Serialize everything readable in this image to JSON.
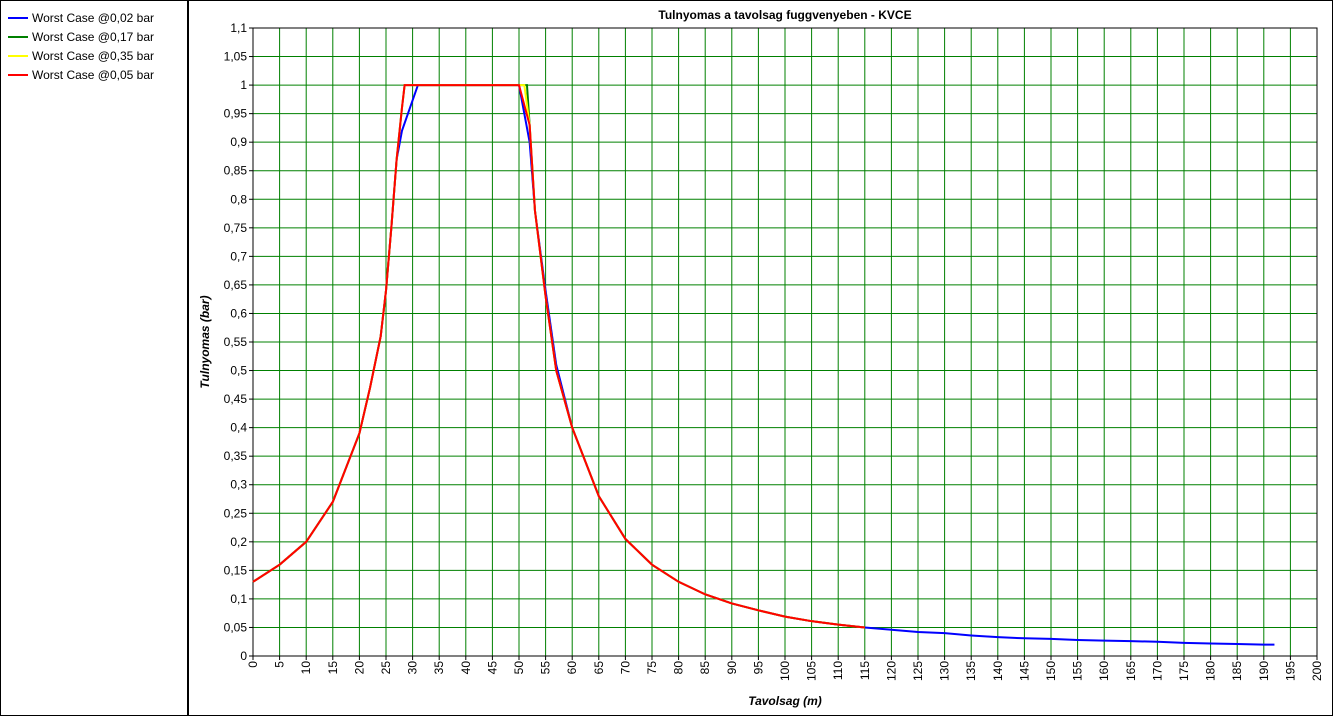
{
  "chart_data": {
    "type": "line",
    "title": "Tulnyomas a tavolsag fuggvenyeben - KVCE",
    "x_label": "Tavolsag (m)",
    "y_label": "Tulnyomas (bar)",
    "legend": "left-panel",
    "grid": true,
    "grid_color": "#008000",
    "xlim": [
      0,
      200
    ],
    "xticks": [
      0,
      5,
      10,
      15,
      20,
      25,
      30,
      35,
      40,
      45,
      50,
      55,
      60,
      65,
      70,
      75,
      80,
      85,
      90,
      95,
      100,
      105,
      110,
      115,
      120,
      125,
      130,
      135,
      140,
      145,
      150,
      155,
      160,
      165,
      170,
      175,
      180,
      185,
      190,
      195,
      200
    ],
    "ylim": [
      0,
      1.1
    ],
    "yticks": [
      0,
      {
        "value": 0.05,
        "label": "0,05"
      },
      {
        "value": 0.1,
        "label": "0,1"
      },
      {
        "value": 0.15,
        "label": "0,15"
      },
      {
        "value": 0.2,
        "label": "0,2"
      },
      {
        "value": 0.25,
        "label": "0,25"
      },
      {
        "value": 0.3,
        "label": "0,3"
      },
      {
        "value": 0.35,
        "label": "0,35"
      },
      {
        "value": 0.4,
        "label": "0,4"
      },
      {
        "value": 0.45,
        "label": "0,45"
      },
      {
        "value": 0.5,
        "label": "0,5"
      },
      {
        "value": 0.55,
        "label": "0,55"
      },
      {
        "value": 0.6,
        "label": "0,6"
      },
      {
        "value": 0.65,
        "label": "0,65"
      },
      {
        "value": 0.7,
        "label": "0,7"
      },
      {
        "value": 0.75,
        "label": "0,75"
      },
      {
        "value": 0.8,
        "label": "0,8"
      },
      {
        "value": 0.85,
        "label": "0,85"
      },
      {
        "value": 0.9,
        "label": "0,9"
      },
      {
        "value": 0.95,
        "label": "0,95"
      },
      1,
      {
        "value": 1.05,
        "label": "1,05"
      },
      {
        "value": 1.1,
        "label": "1,1"
      }
    ],
    "series": [
      {
        "name": "Worst Case @0,02 bar",
        "color": "#0000ff",
        "x": [
          0,
          5,
          10,
          15,
          20,
          22,
          24,
          25,
          26,
          27,
          28,
          31,
          50,
          52,
          53,
          55,
          57,
          60,
          65,
          70,
          75,
          80,
          85,
          90,
          95,
          100,
          105,
          110,
          115,
          120,
          125,
          130,
          135,
          140,
          145,
          150,
          155,
          160,
          165,
          170,
          175,
          180,
          185,
          190,
          192
        ],
        "values": [
          0.13,
          0.16,
          0.2,
          0.27,
          0.39,
          0.47,
          0.56,
          0.64,
          0.75,
          0.87,
          0.92,
          1,
          1,
          0.9,
          0.78,
          0.64,
          0.51,
          0.4,
          0.28,
          0.205,
          0.16,
          0.13,
          0.108,
          0.092,
          0.08,
          0.069,
          0.061,
          0.055,
          0.05,
          0.046,
          0.042,
          0.04,
          0.036,
          0.033,
          0.031,
          0.03,
          0.028,
          0.027,
          0.026,
          0.025,
          0.023,
          0.022,
          0.021,
          0.02,
          0.02
        ]
      },
      {
        "name": "Worst Case @0,17 bar",
        "color": "#008000",
        "x": [
          0,
          5,
          10,
          15,
          20,
          22,
          24,
          25,
          26,
          27,
          28,
          28.5,
          51.5,
          52,
          53,
          55,
          57,
          60,
          65,
          70,
          75,
          80,
          85,
          90,
          95,
          100,
          105,
          110,
          115
        ],
        "values": [
          0.13,
          0.16,
          0.2,
          0.27,
          0.39,
          0.47,
          0.56,
          0.64,
          0.75,
          0.87,
          0.96,
          1,
          1,
          0.93,
          0.78,
          0.63,
          0.5,
          0.4,
          0.28,
          0.205,
          0.16,
          0.13,
          0.108,
          0.092,
          0.08,
          0.069,
          0.061,
          0.055,
          0.05
        ]
      },
      {
        "name": "Worst Case @0,35 bar",
        "color": "#ffff00",
        "x": [
          0,
          5,
          10,
          15,
          20,
          22,
          24,
          25,
          26,
          27,
          28,
          28.5,
          51,
          52,
          53,
          55,
          57,
          60,
          65,
          70,
          75,
          80,
          85,
          90,
          95,
          100,
          105,
          110,
          115
        ],
        "values": [
          0.13,
          0.16,
          0.2,
          0.27,
          0.39,
          0.47,
          0.56,
          0.64,
          0.75,
          0.87,
          0.96,
          1,
          1,
          0.93,
          0.78,
          0.63,
          0.5,
          0.4,
          0.28,
          0.205,
          0.16,
          0.13,
          0.108,
          0.092,
          0.08,
          0.069,
          0.061,
          0.055,
          0.05
        ]
      },
      {
        "name": "Worst Case @0,05 bar",
        "color": "#ff0000",
        "x": [
          0,
          5,
          10,
          15,
          20,
          22,
          24,
          25,
          26,
          27,
          28,
          28.5,
          50,
          52,
          53,
          55,
          57,
          60,
          65,
          70,
          75,
          80,
          85,
          90,
          95,
          100,
          105,
          110,
          115
        ],
        "values": [
          0.13,
          0.16,
          0.2,
          0.27,
          0.39,
          0.47,
          0.56,
          0.64,
          0.75,
          0.87,
          0.96,
          1,
          1,
          0.93,
          0.78,
          0.63,
          0.5,
          0.4,
          0.28,
          0.205,
          0.16,
          0.13,
          0.108,
          0.092,
          0.08,
          0.069,
          0.061,
          0.055,
          0.05
        ]
      }
    ]
  }
}
